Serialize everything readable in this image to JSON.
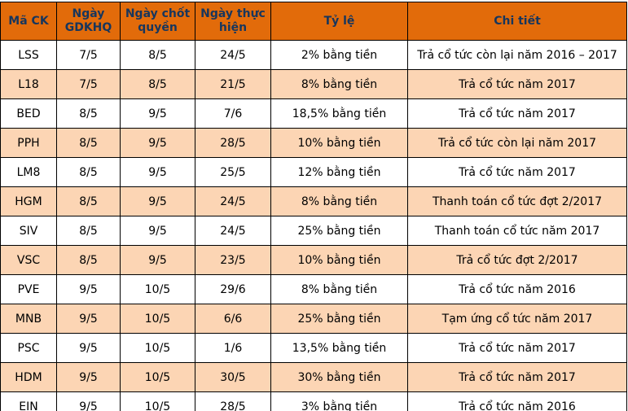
{
  "table": {
    "columns": [
      {
        "key": "code",
        "label": "Mã CK"
      },
      {
        "key": "gdkhq",
        "label": "Ngày GDKHQ"
      },
      {
        "key": "record",
        "label": "Ngày chốt quyền"
      },
      {
        "key": "exec",
        "label": "Ngày thực hiện"
      },
      {
        "key": "ratio",
        "label": "Tỷ lệ"
      },
      {
        "key": "detail",
        "label": "Chi tiết"
      }
    ],
    "rows": [
      [
        "LSS",
        "7/5",
        "8/5",
        "24/5",
        "2% bằng tiền",
        "Trả cổ tức còn lại năm 2016 – 2017"
      ],
      [
        "L18",
        "7/5",
        "8/5",
        "21/5",
        "8% bằng tiền",
        "Trả cổ tức năm 2017"
      ],
      [
        "BED",
        "8/5",
        "9/5",
        "7/6",
        "18,5% bằng tiền",
        "Trả cổ tức năm 2017"
      ],
      [
        "PPH",
        "8/5",
        "9/5",
        "28/5",
        "10% bằng tiền",
        "Trả cổ tức còn lại năm 2017"
      ],
      [
        "LM8",
        "8/5",
        "9/5",
        "25/5",
        "12% bằng tiền",
        "Trả cổ tức năm 2017"
      ],
      [
        "HGM",
        "8/5",
        "9/5",
        "24/5",
        "8% bằng tiền",
        "Thanh toán cổ tức đợt 2/2017"
      ],
      [
        "SIV",
        "8/5",
        "9/5",
        "24/5",
        "25% bằng tiền",
        "Thanh toán cổ tức năm 2017"
      ],
      [
        "VSC",
        "8/5",
        "9/5",
        "23/5",
        "10% bằng tiền",
        "Trả cổ tức đợt 2/2017"
      ],
      [
        "PVE",
        "9/5",
        "10/5",
        "29/6",
        "8% bằng tiền",
        "Trả cổ tức năm 2016"
      ],
      [
        "MNB",
        "9/5",
        "10/5",
        "6/6",
        "25% bằng tiền",
        "Tạm ứng cổ tức năm 2017"
      ],
      [
        "PSC",
        "9/5",
        "10/5",
        "1/6",
        "13,5% bằng tiền",
        "Trả cổ tức năm 2017"
      ],
      [
        "HDM",
        "9/5",
        "10/5",
        "30/5",
        "30% bằng tiền",
        "Trả cổ tức năm 2017"
      ],
      [
        "EIN",
        "9/5",
        "10/5",
        "28/5",
        "3% bằng tiền",
        "Trả cổ tức năm 2016"
      ]
    ]
  },
  "colors": {
    "header_bg": "#E26B0A",
    "header_text": "#17365D",
    "row_bg": "#FFFFFF",
    "row_alt_bg": "#FCD5B4",
    "border": "#000000"
  }
}
